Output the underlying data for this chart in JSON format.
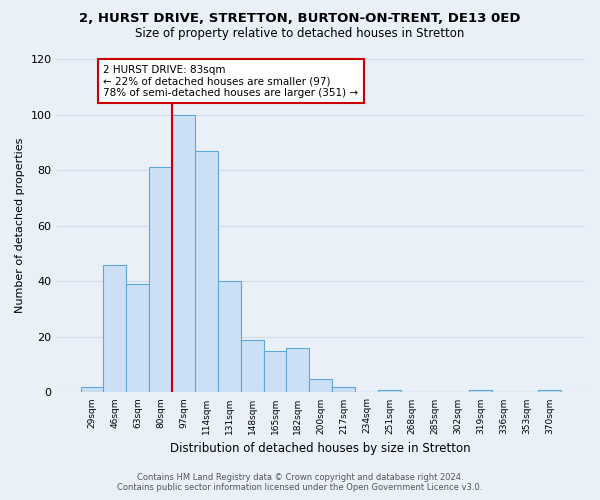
{
  "title": "2, HURST DRIVE, STRETTON, BURTON-ON-TRENT, DE13 0ED",
  "subtitle": "Size of property relative to detached houses in Stretton",
  "xlabel": "Distribution of detached houses by size in Stretton",
  "ylabel": "Number of detached properties",
  "bin_labels": [
    "29sqm",
    "46sqm",
    "63sqm",
    "80sqm",
    "97sqm",
    "114sqm",
    "131sqm",
    "148sqm",
    "165sqm",
    "182sqm",
    "200sqm",
    "217sqm",
    "234sqm",
    "251sqm",
    "268sqm",
    "285sqm",
    "302sqm",
    "319sqm",
    "336sqm",
    "353sqm",
    "370sqm"
  ],
  "bar_values": [
    2,
    46,
    39,
    81,
    100,
    87,
    40,
    19,
    15,
    16,
    5,
    2,
    0,
    1,
    0,
    0,
    0,
    1,
    0,
    0,
    1
  ],
  "bar_color": "#cce0f5",
  "bar_edge_color": "#5ea8d8",
  "vline_color": "#cc0000",
  "annotation_text": "2 HURST DRIVE: 83sqm\n← 22% of detached houses are smaller (97)\n78% of semi-detached houses are larger (351) →",
  "annotation_box_facecolor": "#ffffff",
  "annotation_box_edgecolor": "#cc0000",
  "ylim": [
    0,
    120
  ],
  "yticks": [
    0,
    20,
    40,
    60,
    80,
    100,
    120
  ],
  "grid_color": "#d0dce8",
  "footer_line1": "Contains HM Land Registry data © Crown copyright and database right 2024.",
  "footer_line2": "Contains public sector information licensed under the Open Government Licence v3.0.",
  "bg_color": "#eaf0f8"
}
